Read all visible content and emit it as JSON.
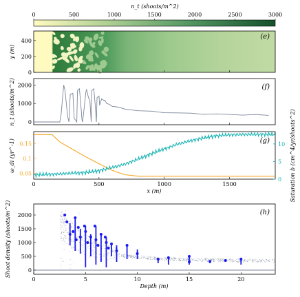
{
  "colors": {
    "density_line": "#7a8599",
    "omega_line": "#f5a623",
    "saturation_line": "#17b3b3",
    "saturation_axis": "#17b3b3",
    "scatter_cloud": "#4a5a7a",
    "observations": "#1a1aee",
    "cmap_low": "#fffbc0",
    "cmap_mid": "#a8cc90",
    "cmap_high": "#14502a"
  },
  "chart_data": [
    {
      "panel": "colorbar",
      "type": "heatmap",
      "label": "n_t (shoots/m^2)",
      "ticks": [
        0,
        500,
        1000,
        1500,
        2000,
        2500,
        3000
      ],
      "range": [
        0,
        3000
      ]
    },
    {
      "panel": "e",
      "type": "heatmap",
      "tag": "(e)",
      "xlim": [
        0,
        1850
      ],
      "ylim": [
        0,
        520
      ],
      "yticks": [
        0,
        200,
        400
      ],
      "ylabel": "y (m)",
      "description_field": "shoot density n_t over plane; bare region x<140, patchy labyrinth 140-560, smooth meadow beyond",
      "profile_x": [
        0,
        140,
        150,
        560,
        600,
        700,
        800,
        900,
        1000,
        1200,
        1400,
        1600,
        1850
      ],
      "profile_n": [
        0,
        0,
        1600,
        1600,
        1350,
        1150,
        1000,
        880,
        800,
        700,
        640,
        600,
        560
      ]
    },
    {
      "panel": "f",
      "type": "line",
      "tag": "(f)",
      "xlim": [
        0,
        1850
      ],
      "ylim": [
        -150,
        2350
      ],
      "yticks": [
        0,
        1000,
        2000
      ],
      "ylabel": "n_t (shoots/m^2)",
      "x": [
        0,
        150,
        200,
        210,
        230,
        240,
        260,
        270,
        280,
        300,
        310,
        330,
        335,
        350,
        360,
        370,
        375,
        400,
        405,
        420,
        430,
        440,
        445,
        460,
        470,
        480,
        485,
        500,
        505,
        520,
        530,
        540,
        545,
        560,
        580,
        600,
        650,
        700,
        800,
        900,
        1000,
        1100,
        1200,
        1300,
        1400,
        1500,
        1600,
        1700,
        1800
      ],
      "y": [
        0,
        0,
        0,
        400,
        2000,
        1700,
        300,
        0,
        1500,
        1550,
        200,
        0,
        1700,
        1800,
        1000,
        100,
        0,
        1650,
        1750,
        1300,
        1200,
        0,
        1700,
        1800,
        1000,
        0,
        1300,
        1400,
        900,
        1250,
        1200,
        1150,
        1180,
        1000,
        950,
        850,
        780,
        700,
        620,
        560,
        520,
        490,
        460,
        440,
        420,
        400,
        390,
        380,
        370
      ]
    },
    {
      "panel": "g",
      "type": "line",
      "tag": "(g)",
      "xlim": [
        0,
        1850
      ],
      "xticks": [
        0,
        500,
        1000,
        1500
      ],
      "xlabel": "x (m)",
      "left_axis": {
        "label": "ω_di (yr^-1)",
        "ylim": [
          0.03,
          0.19
        ],
        "yticks": [
          0.05,
          0.1,
          0.15
        ]
      },
      "right_axis": {
        "label": "Saturation b (cm^4/yr/shoots^2)",
        "ylim": [
          0,
          13.5
        ],
        "yticks": [
          0,
          5,
          10
        ]
      },
      "series": [
        {
          "axis": "left",
          "x": [
            0,
            100,
            140,
            160,
            200,
            300,
            400,
            500,
            600,
            650,
            700,
            800,
            1000,
            1200,
            1400,
            1600,
            1850
          ],
          "values": [
            0.18,
            0.18,
            0.18,
            0.172,
            0.155,
            0.13,
            0.105,
            0.082,
            0.06,
            0.052,
            0.045,
            0.04,
            0.04,
            0.04,
            0.04,
            0.04,
            0.04
          ]
        },
        {
          "axis": "right",
          "x": [
            0,
            200,
            400,
            500,
            600,
            700,
            800,
            900,
            1000,
            1100,
            1200,
            1300,
            1400,
            1500,
            1600,
            1700,
            1850
          ],
          "values": [
            1.2,
            1.5,
            1.9,
            2.4,
            3.3,
            4.3,
            5.7,
            7.2,
            8.6,
            9.9,
            10.9,
            11.7,
            12.3,
            12.6,
            12.7,
            12.7,
            12.7
          ]
        }
      ]
    },
    {
      "panel": "h",
      "type": "scatter",
      "tag": "(h)",
      "xlim": [
        0,
        23.3
      ],
      "ylim": [
        -150,
        2400
      ],
      "xticks": [
        0,
        5,
        10,
        15,
        20
      ],
      "yticks": [
        0,
        500,
        1000,
        1500,
        2000
      ],
      "xlabel": "Depth (m)",
      "ylabel": "Shoot density (shoots/m^2)",
      "cloud": {
        "depth_min": 2.6,
        "depth_max": 23.3,
        "trend_x": [
          2.6,
          3,
          4,
          5,
          6,
          7,
          8,
          9,
          10,
          12,
          14,
          16,
          18,
          20,
          23
        ],
        "trend_y": [
          1600,
          1450,
          1150,
          900,
          740,
          640,
          570,
          510,
          470,
          420,
          390,
          370,
          360,
          350,
          340
        ]
      },
      "observations": {
        "x": [
          3.0,
          3.2,
          3.5,
          3.8,
          4.0,
          4.1,
          4.3,
          4.5,
          4.9,
          5.0,
          5.2,
          5.5,
          5.9,
          6.0,
          6.2,
          6.5,
          6.9,
          7.0,
          7.2,
          7.5,
          8.0,
          9.0,
          10.0,
          12.0,
          13.0,
          15.0,
          15.0,
          17.0,
          18.5,
          20.0
        ],
        "y": [
          2000,
          1750,
          1300,
          1400,
          1900,
          1100,
          1550,
          1200,
          1600,
          1400,
          1000,
          1200,
          1600,
          1100,
          900,
          1300,
          1200,
          1000,
          800,
          950,
          700,
          900,
          600,
          400,
          450,
          500,
          300,
          320,
          350,
          400
        ],
        "bars": [
          [
            3.5,
            900,
            1700
          ],
          [
            4.0,
            700,
            1900
          ],
          [
            4.5,
            600,
            1500
          ],
          [
            5.0,
            100,
            1600
          ],
          [
            5.5,
            500,
            1300
          ],
          [
            6.0,
            200,
            1600
          ],
          [
            6.5,
            300,
            1300
          ],
          [
            7.0,
            100,
            1200
          ],
          [
            7.5,
            500,
            950
          ],
          [
            8.0,
            300,
            900
          ],
          [
            9.0,
            400,
            900
          ],
          [
            10.0,
            400,
            750
          ],
          [
            12.0,
            250,
            450
          ],
          [
            13.0,
            200,
            500
          ],
          [
            15.0,
            200,
            500
          ],
          [
            17.0,
            250,
            350
          ],
          [
            18.5,
            300,
            400
          ],
          [
            20.0,
            200,
            400
          ]
        ]
      },
      "baseline_y": 0
    }
  ]
}
